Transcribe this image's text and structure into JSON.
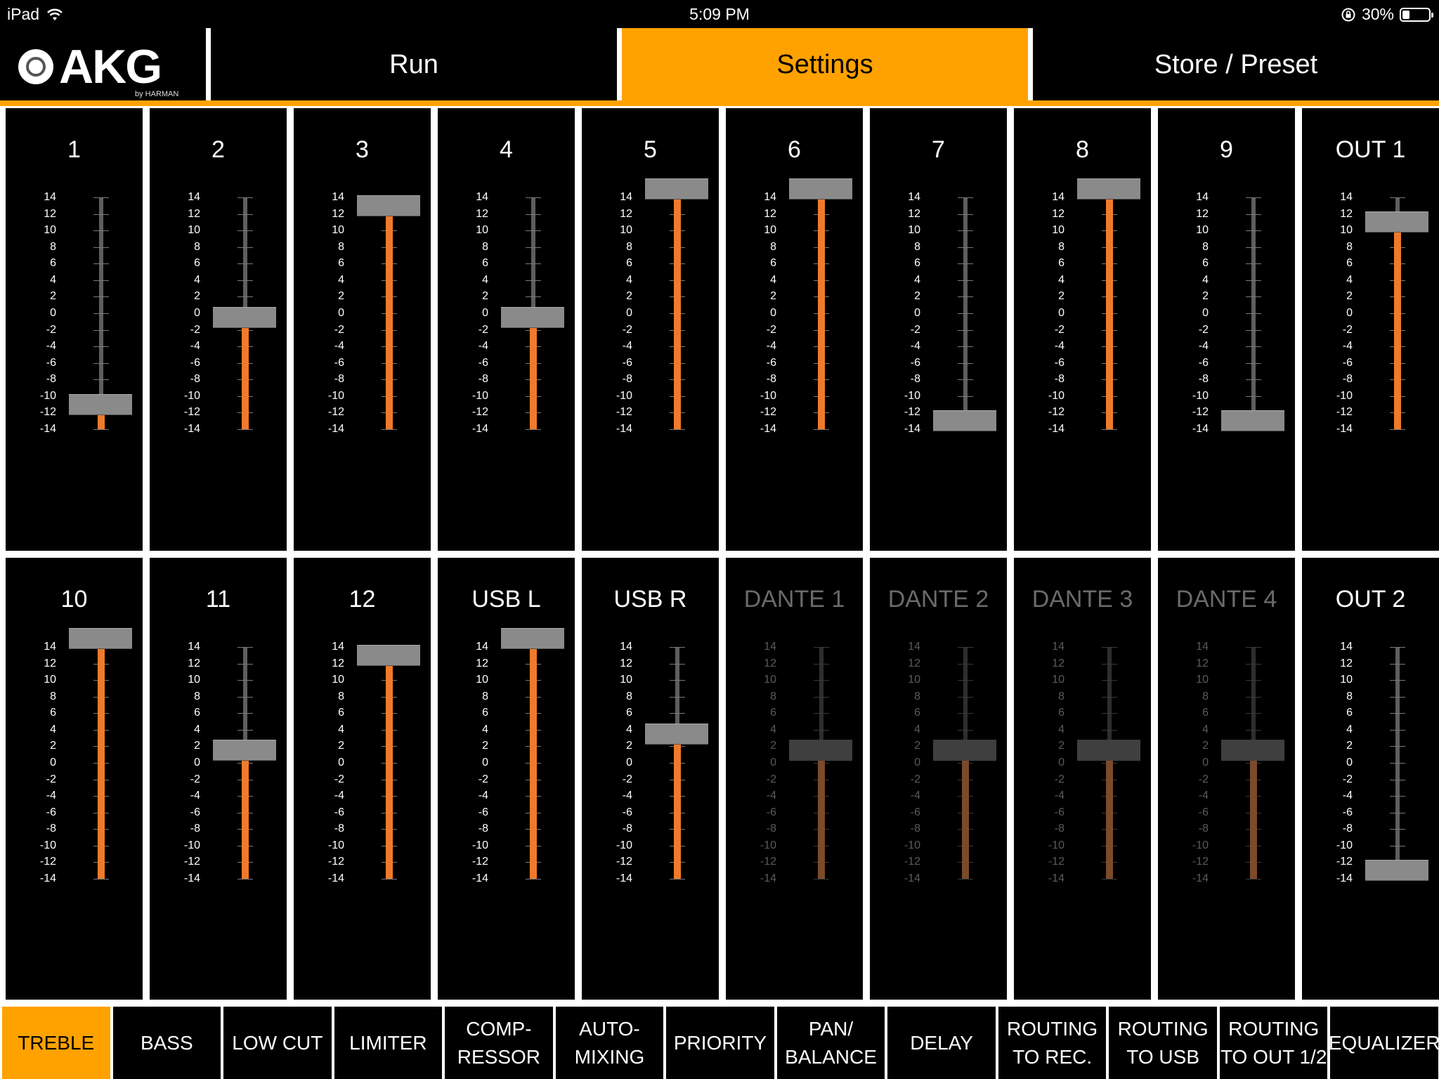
{
  "status_bar": {
    "device": "iPad",
    "time": "5:09 PM",
    "battery": "30%"
  },
  "header": {
    "logo_text": "AKG",
    "logo_sub": "by HARMAN",
    "tabs": [
      {
        "label": "Run",
        "active": false
      },
      {
        "label": "Settings",
        "active": true
      },
      {
        "label": "Store / Preset",
        "active": false
      }
    ]
  },
  "scale_labels": [
    "14",
    "12",
    "10",
    "8",
    "6",
    "4",
    "2",
    "0",
    "-2",
    "-4",
    "-6",
    "-8",
    "-10",
    "-12",
    "-14"
  ],
  "fader_range": [
    -14,
    14
  ],
  "colors": {
    "accent": "#ffa200",
    "fill": "#f07a2a",
    "knob": "#8a8a8a"
  },
  "channels": [
    {
      "label": "1",
      "value": -11,
      "enabled": true
    },
    {
      "label": "2",
      "value": -0.5,
      "enabled": true
    },
    {
      "label": "3",
      "value": 13,
      "enabled": true
    },
    {
      "label": "4",
      "value": -0.5,
      "enabled": true
    },
    {
      "label": "5",
      "value": 15,
      "enabled": true
    },
    {
      "label": "6",
      "value": 15,
      "enabled": true
    },
    {
      "label": "7",
      "value": -13,
      "enabled": true
    },
    {
      "label": "8",
      "value": 15,
      "enabled": true
    },
    {
      "label": "9",
      "value": -13,
      "enabled": true
    },
    {
      "label": "OUT 1",
      "value": 11,
      "enabled": true
    },
    {
      "label": "10",
      "value": 15,
      "enabled": true
    },
    {
      "label": "11",
      "value": 1.5,
      "enabled": true
    },
    {
      "label": "12",
      "value": 13,
      "enabled": true
    },
    {
      "label": "USB L",
      "value": 15,
      "enabled": true
    },
    {
      "label": "USB R",
      "value": 3.5,
      "enabled": true
    },
    {
      "label": "DANTE 1",
      "value": 1.5,
      "enabled": false
    },
    {
      "label": "DANTE 2",
      "value": 1.5,
      "enabled": false
    },
    {
      "label": "DANTE 3",
      "value": 1.5,
      "enabled": false
    },
    {
      "label": "DANTE 4",
      "value": 1.5,
      "enabled": false
    },
    {
      "label": "OUT 2",
      "value": -13,
      "enabled": true
    }
  ],
  "bottom_tabs": [
    {
      "label": "TREBLE",
      "active": true
    },
    {
      "label": "BASS",
      "active": false
    },
    {
      "label": "LOW CUT",
      "active": false
    },
    {
      "label": "LIMITER",
      "active": false
    },
    {
      "label": "COMP-\nRESSOR",
      "active": false
    },
    {
      "label": "AUTO-\nMIXING",
      "active": false
    },
    {
      "label": "PRIORITY",
      "active": false
    },
    {
      "label": "PAN/\nBALANCE",
      "active": false
    },
    {
      "label": "DELAY",
      "active": false
    },
    {
      "label": "ROUTING\nTO REC.",
      "active": false
    },
    {
      "label": "ROUTING\nTO USB",
      "active": false
    },
    {
      "label": "ROUTING\nTO OUT 1/2",
      "active": false
    },
    {
      "label": "EQUALIZER",
      "active": false
    }
  ]
}
